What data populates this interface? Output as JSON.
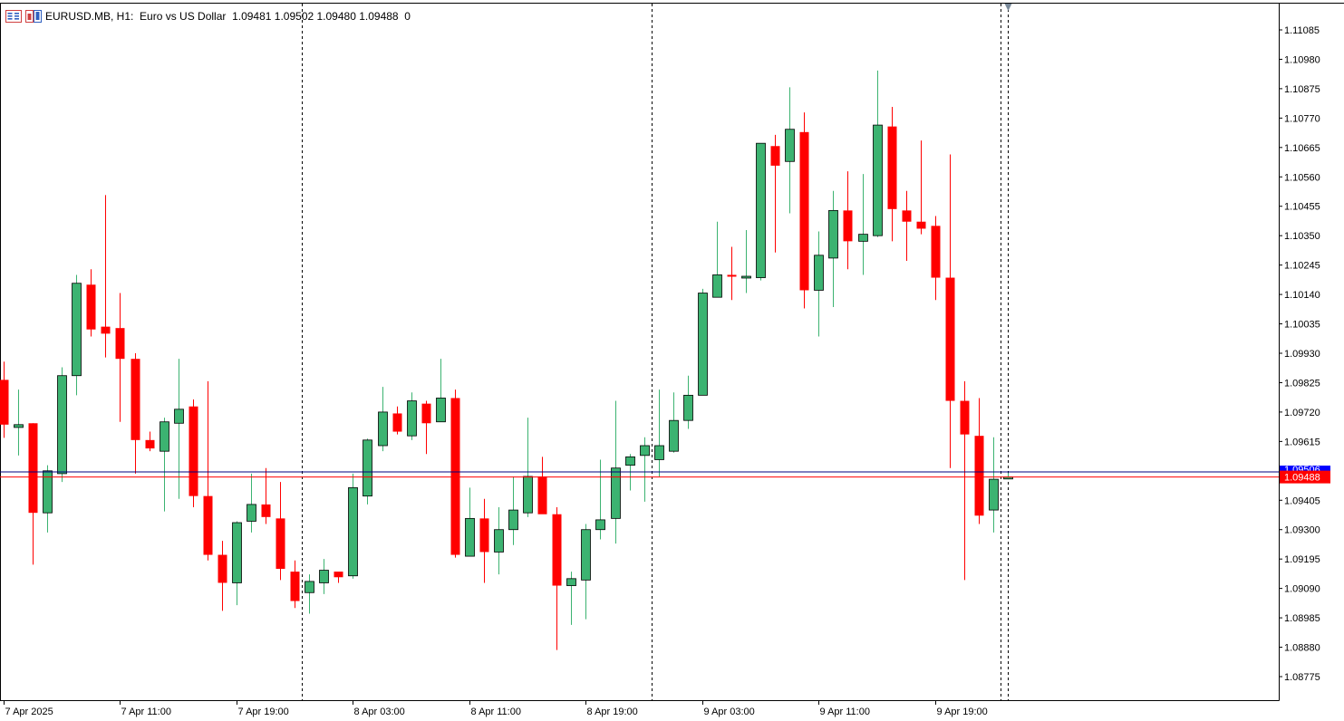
{
  "header": {
    "symbol": "EURUSD.MB, H1:",
    "description": "Euro vs US Dollar",
    "ohlc": "1.09481 1.09502 1.09480 1.09488",
    "volume": "0"
  },
  "icons": [
    "candle-window-icon",
    "one-click-trading-icon"
  ],
  "colors": {
    "bull": "#3cb371",
    "bear": "#ff0000",
    "bid_line": "#ff0000",
    "ask_line": "#000080",
    "price_tag_bid": "#ff0000",
    "price_tag_ask": "#0000ff",
    "grid_separator": "#000000"
  },
  "chart_data": {
    "type": "candlestick",
    "timeframe": "H1",
    "ylim": [
      1.087,
      1.1117
    ],
    "y_ticks": [
      "1.11085",
      "1.10980",
      "1.10875",
      "1.10770",
      "1.10665",
      "1.10560",
      "1.10455",
      "1.10350",
      "1.10245",
      "1.10140",
      "1.10035",
      "1.09930",
      "1.09825",
      "1.09720",
      "1.09615",
      "1.09510",
      "1.09405",
      "1.09300",
      "1.09195",
      "1.09090",
      "1.08985",
      "1.08880",
      "1.08775"
    ],
    "x_labels": [
      {
        "bar": 0,
        "label": "7 Apr 2025"
      },
      {
        "bar": 8,
        "label": "7 Apr 11:00"
      },
      {
        "bar": 16,
        "label": "7 Apr 19:00"
      },
      {
        "bar": 24,
        "label": "8 Apr 03:00"
      },
      {
        "bar": 32,
        "label": "8 Apr 11:00"
      },
      {
        "bar": 40,
        "label": "8 Apr 19:00"
      },
      {
        "bar": 48,
        "label": "9 Apr 03:00"
      },
      {
        "bar": 56,
        "label": "9 Apr 11:00"
      },
      {
        "bar": 64,
        "label": "9 Apr 19:00"
      }
    ],
    "period_separators": [
      20.5,
      44.5,
      68.5
    ],
    "bid": 1.09488,
    "bid_label": "1.09488",
    "ask": 1.09506,
    "ask_label": "1.09506",
    "candles": [
      [
        1.09835,
        1.099,
        1.09628,
        1.09675
      ],
      [
        1.09665,
        1.098,
        1.09565,
        1.09675
      ],
      [
        1.0968,
        1.0968,
        1.09175,
        1.0936
      ],
      [
        1.0936,
        1.0953,
        1.0929,
        1.0951
      ],
      [
        1.095,
        1.0988,
        1.0947,
        1.0985
      ],
      [
        1.0985,
        1.1021,
        1.0978,
        1.1018
      ],
      [
        1.10175,
        1.1023,
        1.0999,
        1.10015
      ],
      [
        1.10025,
        1.10495,
        1.09915,
        1.1
      ],
      [
        1.1002,
        1.10145,
        1.09685,
        1.0991
      ],
      [
        1.0991,
        1.0993,
        1.095,
        1.0962
      ],
      [
        1.0962,
        1.0965,
        1.0958,
        1.0959
      ],
      [
        1.0958,
        1.097,
        1.09365,
        1.09685
      ],
      [
        1.0968,
        1.0991,
        1.0941,
        1.0973
      ],
      [
        1.0974,
        1.09765,
        1.0938,
        1.0942
      ],
      [
        1.0942,
        1.0983,
        1.0919,
        1.0921
      ],
      [
        1.0921,
        1.0926,
        1.0901,
        1.0911
      ],
      [
        1.0911,
        1.0933,
        1.0903,
        1.09325
      ],
      [
        1.0933,
        1.095,
        1.0929,
        1.0939
      ],
      [
        1.0939,
        1.0952,
        1.0932,
        1.09345
      ],
      [
        1.0934,
        1.0947,
        1.0912,
        1.0916
      ],
      [
        1.0915,
        1.0919,
        1.0902,
        1.09045
      ],
      [
        1.09075,
        1.0914,
        1.09,
        1.09115
      ],
      [
        1.0911,
        1.09195,
        1.0907,
        1.09155
      ],
      [
        1.0915,
        1.09145,
        1.0911,
        1.0913
      ],
      [
        1.09135,
        1.095,
        1.09125,
        1.0945
      ],
      [
        1.0942,
        1.09625,
        1.0939,
        1.0962
      ],
      [
        1.096,
        1.0981,
        1.0958,
        1.0972
      ],
      [
        1.09715,
        1.0974,
        1.0964,
        1.0965
      ],
      [
        1.09635,
        1.0979,
        1.0962,
        1.0976
      ],
      [
        1.0975,
        1.0976,
        1.0957,
        1.0968
      ],
      [
        1.09685,
        1.0991,
        1.0969,
        1.0977
      ],
      [
        1.0977,
        1.098,
        1.092,
        1.0921
      ],
      [
        1.09205,
        1.0945,
        1.0922,
        1.0934
      ],
      [
        1.0934,
        1.0941,
        1.0911,
        1.0922
      ],
      [
        1.0922,
        1.0938,
        1.0914,
        1.093
      ],
      [
        1.093,
        1.0949,
        1.09245,
        1.0937
      ],
      [
        1.0936,
        1.097,
        1.09345,
        1.0949
      ],
      [
        1.0949,
        1.0956,
        1.0936,
        1.09355
      ],
      [
        1.09355,
        1.0938,
        1.0887,
        1.091
      ],
      [
        1.091,
        1.0915,
        1.0896,
        1.09125
      ],
      [
        1.0912,
        1.0932,
        1.0898,
        1.093
      ],
      [
        1.093,
        1.0955,
        1.09265,
        1.09335
      ],
      [
        1.0934,
        1.0976,
        1.0925,
        1.0952
      ],
      [
        1.0953,
        1.0957,
        1.0944,
        1.0956
      ],
      [
        1.09565,
        1.0963,
        1.094,
        1.096
      ],
      [
        1.0955,
        1.098,
        1.0949,
        1.096
      ],
      [
        1.0958,
        1.0979,
        1.09575,
        1.0969
      ],
      [
        1.0969,
        1.0985,
        1.0966,
        1.0978
      ],
      [
        1.0978,
        1.1016,
        1.0978,
        1.10145
      ],
      [
        1.1013,
        1.104,
        1.1013,
        1.1021
      ],
      [
        1.1021,
        1.1031,
        1.1012,
        1.10205
      ],
      [
        1.102,
        1.1037,
        1.10145,
        1.10205
      ],
      [
        1.102,
        1.1068,
        1.1019,
        1.1068
      ],
      [
        1.1067,
        1.1071,
        1.1029,
        1.106
      ],
      [
        1.10615,
        1.1088,
        1.1043,
        1.1073
      ],
      [
        1.1072,
        1.1079,
        1.1009,
        1.10155
      ],
      [
        1.10155,
        1.10365,
        1.0999,
        1.1028
      ],
      [
        1.1027,
        1.1051,
        1.10095,
        1.1044
      ],
      [
        1.1044,
        1.1058,
        1.1023,
        1.1033
      ],
      [
        1.1033,
        1.1057,
        1.1021,
        1.10355
      ],
      [
        1.1035,
        1.1094,
        1.10345,
        1.10745
      ],
      [
        1.1074,
        1.1081,
        1.1033,
        1.10445
      ],
      [
        1.1044,
        1.1051,
        1.1026,
        1.104
      ],
      [
        1.104,
        1.1069,
        1.10355,
        1.10375
      ],
      [
        1.10385,
        1.1042,
        1.1012,
        1.102
      ],
      [
        1.102,
        1.1064,
        1.0952,
        1.0976
      ],
      [
        1.0976,
        1.0983,
        1.0912,
        1.0964
      ],
      [
        1.09635,
        1.0977,
        1.0932,
        1.0935
      ],
      [
        1.0937,
        1.0963,
        1.0929,
        1.0948
      ],
      [
        1.09481,
        1.09502,
        1.0948,
        1.09488
      ]
    ]
  }
}
